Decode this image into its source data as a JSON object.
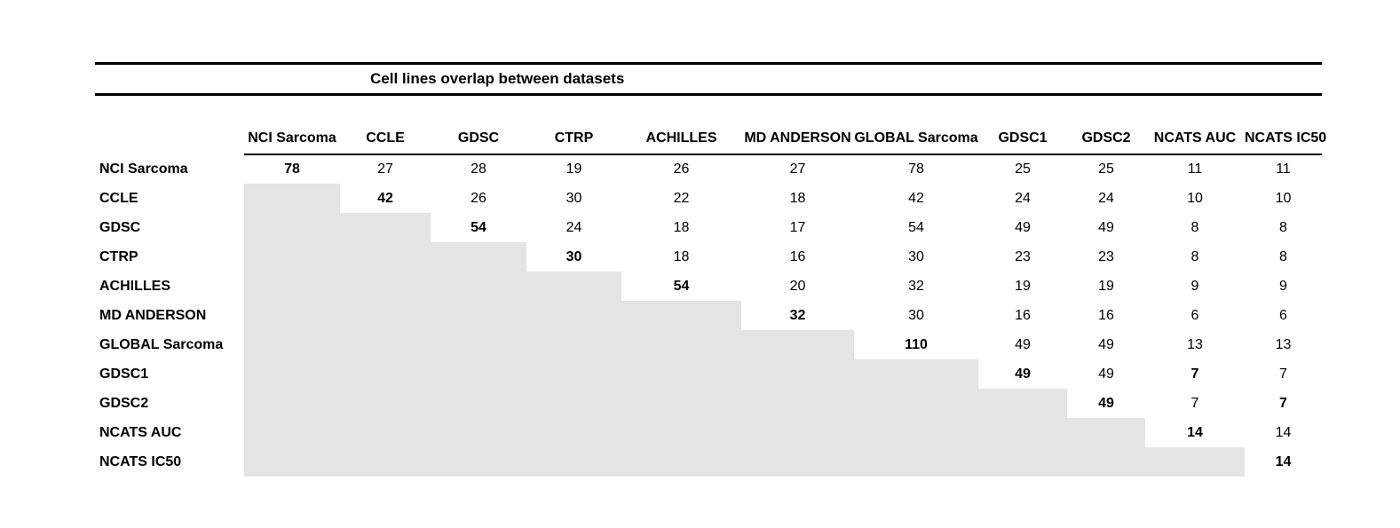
{
  "title": "Cell lines overlap between datasets",
  "colors": {
    "shaded_cell": "#e4e4e4",
    "rule": "#000000",
    "text": "#000000",
    "background": "#ffffff"
  },
  "chart_data": {
    "type": "table",
    "title": "Cell lines overlap between datasets",
    "columns": [
      "NCI Sarcoma",
      "CCLE",
      "GDSC",
      "CTRP",
      "ACHILLES",
      "MD ANDERSON",
      "GLOBAL Sarcoma",
      "GDSC1",
      "GDSC2",
      "NCATS AUC",
      "NCATS IC50"
    ],
    "rows": [
      "NCI Sarcoma",
      "CCLE",
      "GDSC",
      "CTRP",
      "ACHILLES",
      "MD ANDERSON",
      "GLOBAL Sarcoma",
      "GDSC1",
      "GDSC2",
      "NCATS AUC",
      "NCATS IC50"
    ],
    "cells": [
      [
        78,
        27,
        28,
        19,
        26,
        27,
        78,
        25,
        25,
        11,
        11
      ],
      [
        null,
        42,
        26,
        30,
        22,
        18,
        42,
        24,
        24,
        10,
        10
      ],
      [
        null,
        null,
        54,
        24,
        18,
        17,
        54,
        49,
        49,
        8,
        8
      ],
      [
        null,
        null,
        null,
        30,
        18,
        16,
        30,
        23,
        23,
        8,
        8
      ],
      [
        null,
        null,
        null,
        null,
        54,
        20,
        32,
        19,
        19,
        9,
        9
      ],
      [
        null,
        null,
        null,
        null,
        null,
        32,
        30,
        16,
        16,
        6,
        6
      ],
      [
        null,
        null,
        null,
        null,
        null,
        null,
        110,
        49,
        49,
        13,
        13
      ],
      [
        null,
        null,
        null,
        null,
        null,
        null,
        null,
        49,
        49,
        7,
        7
      ],
      [
        null,
        null,
        null,
        null,
        null,
        null,
        null,
        null,
        49,
        7,
        7
      ],
      [
        null,
        null,
        null,
        null,
        null,
        null,
        null,
        null,
        null,
        14,
        14
      ],
      [
        null,
        null,
        null,
        null,
        null,
        null,
        null,
        null,
        null,
        null,
        14
      ]
    ],
    "bold_cells": [
      [
        0,
        0
      ],
      [
        1,
        1
      ],
      [
        2,
        2
      ],
      [
        3,
        3
      ],
      [
        4,
        4
      ],
      [
        5,
        5
      ],
      [
        6,
        6
      ],
      [
        7,
        7
      ],
      [
        7,
        9
      ],
      [
        8,
        8
      ],
      [
        8,
        10
      ],
      [
        9,
        9
      ],
      [
        10,
        10
      ]
    ],
    "notes": "Lower triangle is shaded gray (no values); diagonal values are bold."
  }
}
